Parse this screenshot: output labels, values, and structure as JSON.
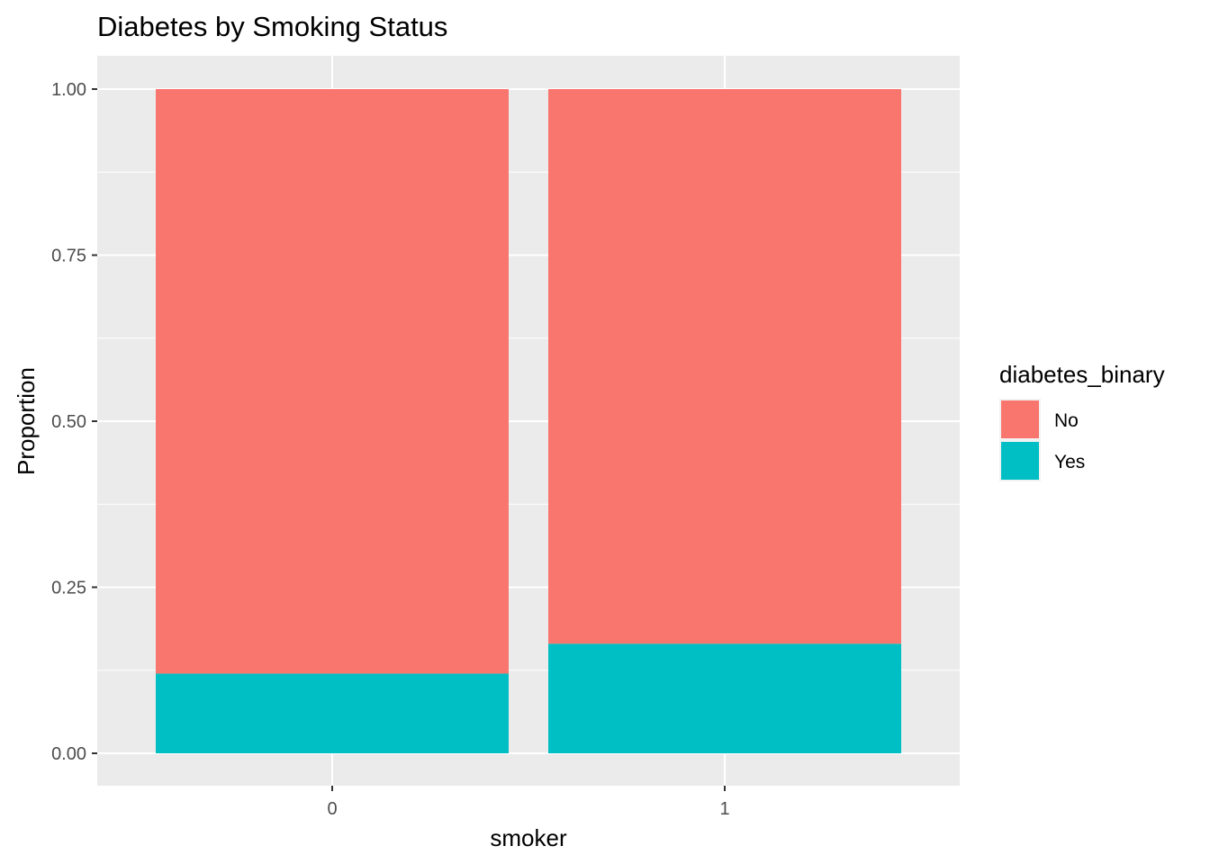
{
  "chart_data": {
    "type": "bar",
    "stacked": true,
    "title": "Diabetes by Smoking Status",
    "xlabel": "smoker",
    "ylabel": "Proportion",
    "categories": [
      "0",
      "1"
    ],
    "ylim": [
      0,
      1
    ],
    "yticks": [
      0,
      0.25,
      0.5,
      0.75,
      1
    ],
    "ytick_labels": [
      "0.00",
      "0.25",
      "0.50",
      "0.75",
      "1.00"
    ],
    "grid": true,
    "legend": {
      "title": "diabetes_binary",
      "placement": "right"
    },
    "series": [
      {
        "name": "Yes",
        "color": "#00BFC4",
        "values": [
          0.12,
          0.165
        ]
      },
      {
        "name": "No",
        "color": "#F8766D",
        "values": [
          0.88,
          0.835
        ]
      }
    ],
    "legend_order": [
      "No",
      "Yes"
    ],
    "panel_background": "#EBEBEB",
    "grid_color": "#FFFFFF"
  }
}
